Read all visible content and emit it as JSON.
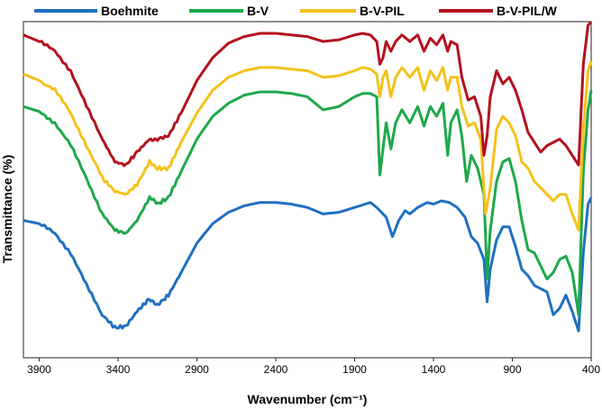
{
  "chart_data": {
    "type": "line",
    "title": "",
    "xlabel": "Wavenumber (cm⁻¹)",
    "ylabel": "Transmittance (%)",
    "xlim": [
      4000,
      400
    ],
    "x_reversed": true,
    "ylim": [
      0,
      100
    ],
    "y_ticks_shown": false,
    "grid": false,
    "legend_position": "top",
    "x_ticks": [
      3900,
      3400,
      2900,
      2400,
      1900,
      1400,
      900,
      400
    ],
    "x_tick_labels": [
      "3900",
      "3400",
      "2900",
      "2400",
      "1900",
      "1400",
      "900",
      "400"
    ],
    "series": [
      {
        "name": "Boehmite",
        "color": "#1f6fc1",
        "points": [
          [
            4000,
            40
          ],
          [
            3900,
            39
          ],
          [
            3800,
            36
          ],
          [
            3700,
            30
          ],
          [
            3600,
            20
          ],
          [
            3500,
            11
          ],
          [
            3420,
            7
          ],
          [
            3350,
            7.5
          ],
          [
            3280,
            12
          ],
          [
            3200,
            16
          ],
          [
            3150,
            14
          ],
          [
            3080,
            17
          ],
          [
            3000,
            24
          ],
          [
            2900,
            33
          ],
          [
            2800,
            39
          ],
          [
            2700,
            42.5
          ],
          [
            2600,
            44.5
          ],
          [
            2500,
            45.5
          ],
          [
            2400,
            45.5
          ],
          [
            2300,
            45
          ],
          [
            2200,
            44
          ],
          [
            2100,
            42
          ],
          [
            2000,
            42.5
          ],
          [
            1900,
            44
          ],
          [
            1800,
            45.5
          ],
          [
            1760,
            44
          ],
          [
            1700,
            41
          ],
          [
            1660,
            35
          ],
          [
            1620,
            40
          ],
          [
            1580,
            43
          ],
          [
            1550,
            42
          ],
          [
            1500,
            44
          ],
          [
            1440,
            45.5
          ],
          [
            1400,
            45
          ],
          [
            1350,
            46
          ],
          [
            1300,
            45.5
          ],
          [
            1250,
            44
          ],
          [
            1200,
            41
          ],
          [
            1160,
            35
          ],
          [
            1120,
            33
          ],
          [
            1080,
            28
          ],
          [
            1060,
            15
          ],
          [
            1040,
            25
          ],
          [
            1000,
            34
          ],
          [
            960,
            38
          ],
          [
            920,
            38
          ],
          [
            880,
            32
          ],
          [
            840,
            25
          ],
          [
            800,
            23
          ],
          [
            760,
            20
          ],
          [
            720,
            19
          ],
          [
            680,
            18
          ],
          [
            640,
            11
          ],
          [
            600,
            13
          ],
          [
            560,
            17
          ],
          [
            520,
            12
          ],
          [
            480,
            6
          ],
          [
            450,
            30
          ],
          [
            420,
            45
          ],
          [
            400,
            47
          ]
        ]
      },
      {
        "name": "B-V",
        "color": "#1ea84a",
        "points": [
          [
            4000,
            75
          ],
          [
            3900,
            73.5
          ],
          [
            3800,
            70
          ],
          [
            3700,
            63
          ],
          [
            3600,
            53
          ],
          [
            3500,
            42
          ],
          [
            3420,
            37
          ],
          [
            3350,
            36
          ],
          [
            3280,
            40
          ],
          [
            3200,
            47
          ],
          [
            3150,
            45
          ],
          [
            3080,
            47
          ],
          [
            3000,
            55
          ],
          [
            2900,
            65
          ],
          [
            2800,
            72
          ],
          [
            2700,
            76
          ],
          [
            2600,
            78.5
          ],
          [
            2500,
            79.5
          ],
          [
            2400,
            79.5
          ],
          [
            2300,
            79
          ],
          [
            2200,
            78
          ],
          [
            2100,
            74
          ],
          [
            2000,
            75
          ],
          [
            1900,
            78
          ],
          [
            1850,
            79
          ],
          [
            1800,
            79
          ],
          [
            1760,
            78
          ],
          [
            1740,
            54
          ],
          [
            1720,
            62
          ],
          [
            1700,
            70
          ],
          [
            1670,
            62
          ],
          [
            1640,
            70
          ],
          [
            1600,
            74
          ],
          [
            1550,
            70
          ],
          [
            1500,
            75
          ],
          [
            1460,
            69
          ],
          [
            1420,
            75
          ],
          [
            1380,
            72
          ],
          [
            1340,
            76
          ],
          [
            1310,
            60
          ],
          [
            1290,
            70
          ],
          [
            1250,
            74
          ],
          [
            1220,
            66
          ],
          [
            1190,
            52
          ],
          [
            1160,
            60
          ],
          [
            1120,
            56
          ],
          [
            1080,
            48
          ],
          [
            1060,
            22
          ],
          [
            1040,
            37
          ],
          [
            1000,
            52
          ],
          [
            960,
            58
          ],
          [
            920,
            59
          ],
          [
            880,
            52
          ],
          [
            840,
            40
          ],
          [
            800,
            31
          ],
          [
            760,
            30
          ],
          [
            720,
            26
          ],
          [
            680,
            22
          ],
          [
            640,
            24
          ],
          [
            600,
            28
          ],
          [
            560,
            29
          ],
          [
            520,
            24
          ],
          [
            480,
            11
          ],
          [
            450,
            55
          ],
          [
            420,
            74
          ],
          [
            400,
            80
          ]
        ]
      },
      {
        "name": "B-V-PIL",
        "color": "#f5c21b",
        "points": [
          [
            4000,
            85
          ],
          [
            3900,
            83
          ],
          [
            3800,
            80
          ],
          [
            3700,
            73
          ],
          [
            3600,
            63
          ],
          [
            3500,
            53
          ],
          [
            3420,
            49
          ],
          [
            3350,
            48
          ],
          [
            3280,
            51
          ],
          [
            3200,
            58
          ],
          [
            3150,
            56
          ],
          [
            3080,
            56
          ],
          [
            3000,
            64
          ],
          [
            2900,
            73
          ],
          [
            2800,
            80
          ],
          [
            2700,
            84
          ],
          [
            2600,
            86
          ],
          [
            2500,
            87
          ],
          [
            2400,
            87
          ],
          [
            2300,
            86.5
          ],
          [
            2200,
            86
          ],
          [
            2100,
            84
          ],
          [
            2000,
            84.5
          ],
          [
            1900,
            86
          ],
          [
            1850,
            87
          ],
          [
            1800,
            86.5
          ],
          [
            1760,
            85
          ],
          [
            1740,
            78
          ],
          [
            1720,
            84
          ],
          [
            1700,
            86
          ],
          [
            1670,
            78
          ],
          [
            1640,
            84
          ],
          [
            1600,
            87
          ],
          [
            1550,
            84
          ],
          [
            1500,
            87
          ],
          [
            1460,
            80
          ],
          [
            1420,
            86
          ],
          [
            1380,
            83
          ],
          [
            1340,
            87
          ],
          [
            1310,
            80
          ],
          [
            1290,
            84
          ],
          [
            1250,
            84
          ],
          [
            1220,
            75
          ],
          [
            1180,
            69
          ],
          [
            1140,
            70
          ],
          [
            1100,
            65
          ],
          [
            1070,
            42
          ],
          [
            1040,
            50
          ],
          [
            1000,
            68
          ],
          [
            960,
            72
          ],
          [
            920,
            70
          ],
          [
            880,
            66
          ],
          [
            840,
            58
          ],
          [
            800,
            56
          ],
          [
            760,
            52
          ],
          [
            720,
            50
          ],
          [
            680,
            48
          ],
          [
            640,
            46
          ],
          [
            600,
            48
          ],
          [
            560,
            48
          ],
          [
            520,
            42
          ],
          [
            480,
            37
          ],
          [
            450,
            68
          ],
          [
            420,
            86
          ],
          [
            400,
            89
          ]
        ]
      },
      {
        "name": "B-V-PIL/W",
        "color": "#b3111f",
        "points": [
          [
            4000,
            97
          ],
          [
            3900,
            95
          ],
          [
            3800,
            92
          ],
          [
            3700,
            86
          ],
          [
            3600,
            75
          ],
          [
            3500,
            65
          ],
          [
            3420,
            58
          ],
          [
            3350,
            57
          ],
          [
            3280,
            61
          ],
          [
            3200,
            65
          ],
          [
            3150,
            65
          ],
          [
            3080,
            66
          ],
          [
            3000,
            73
          ],
          [
            2900,
            83
          ],
          [
            2800,
            90
          ],
          [
            2700,
            94.5
          ],
          [
            2600,
            96.5
          ],
          [
            2500,
            97.5
          ],
          [
            2400,
            97.5
          ],
          [
            2300,
            97
          ],
          [
            2200,
            96.5
          ],
          [
            2100,
            95
          ],
          [
            2000,
            95.5
          ],
          [
            1900,
            97
          ],
          [
            1850,
            97.5
          ],
          [
            1800,
            97
          ],
          [
            1760,
            95
          ],
          [
            1740,
            88
          ],
          [
            1720,
            90
          ],
          [
            1700,
            95
          ],
          [
            1670,
            92
          ],
          [
            1640,
            95
          ],
          [
            1600,
            97
          ],
          [
            1550,
            95
          ],
          [
            1500,
            97
          ],
          [
            1460,
            92
          ],
          [
            1420,
            96
          ],
          [
            1380,
            94
          ],
          [
            1340,
            97
          ],
          [
            1310,
            92
          ],
          [
            1290,
            95
          ],
          [
            1250,
            94
          ],
          [
            1220,
            84
          ],
          [
            1180,
            77
          ],
          [
            1140,
            78
          ],
          [
            1100,
            72
          ],
          [
            1080,
            60
          ],
          [
            1060,
            66
          ],
          [
            1040,
            78
          ],
          [
            1000,
            86
          ],
          [
            960,
            82
          ],
          [
            920,
            84
          ],
          [
            880,
            80
          ],
          [
            840,
            74
          ],
          [
            800,
            67
          ],
          [
            760,
            64
          ],
          [
            720,
            61
          ],
          [
            680,
            63
          ],
          [
            640,
            64
          ],
          [
            600,
            65
          ],
          [
            560,
            63
          ],
          [
            520,
            60
          ],
          [
            480,
            57
          ],
          [
            450,
            88
          ],
          [
            420,
            100
          ],
          [
            400,
            101
          ]
        ]
      }
    ]
  }
}
